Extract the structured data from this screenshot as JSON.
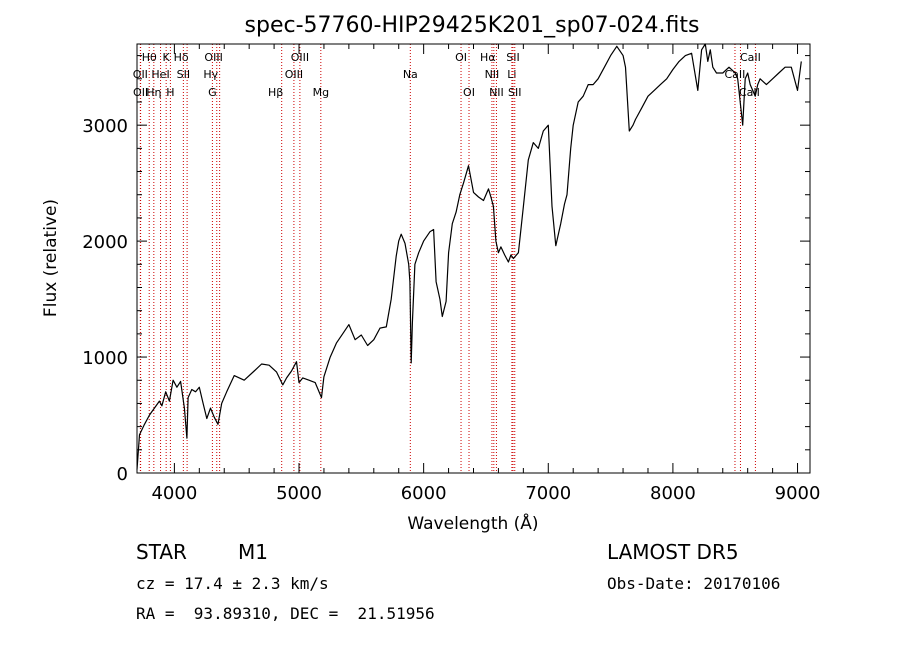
{
  "chart_data": {
    "type": "line",
    "title": "spec-57760-HIP29425K201_sp07-024.fits",
    "xlabel": "Wavelength (Å)",
    "ylabel": "Flux (relative)",
    "xlim": [
      3700,
      9100
    ],
    "ylim": [
      0,
      3700
    ],
    "xticks": [
      4000,
      5000,
      6000,
      7000,
      8000,
      9000
    ],
    "yticks": [
      0,
      1000,
      2000,
      3000
    ],
    "series": [
      {
        "x": [
          3700,
          3720,
          3760,
          3800,
          3840,
          3880,
          3900,
          3930,
          3960,
          3990,
          4020,
          4050,
          4080,
          4100,
          4110,
          4140,
          4170,
          4200,
          4230,
          4260,
          4290,
          4320,
          4350,
          4380,
          4420,
          4480,
          4560,
          4640,
          4700,
          4760,
          4820,
          4870,
          4900,
          4940,
          4980,
          5000,
          5030,
          5080,
          5130,
          5180,
          5200,
          5250,
          5300,
          5350,
          5400,
          5450,
          5500,
          5550,
          5600,
          5650,
          5700,
          5740,
          5780,
          5800,
          5820,
          5850,
          5880,
          5890,
          5900,
          5910,
          5930,
          5960,
          6000,
          6050,
          6080,
          6100,
          6130,
          6150,
          6180,
          6200,
          6230,
          6260,
          6290,
          6320,
          6360,
          6400,
          6440,
          6480,
          6520,
          6540,
          6560,
          6580,
          6600,
          6620,
          6650,
          6680,
          6700,
          6720,
          6760,
          6800,
          6840,
          6880,
          6920,
          6960,
          7000,
          7030,
          7060,
          7100,
          7130,
          7150,
          7180,
          7200,
          7240,
          7280,
          7320,
          7360,
          7400,
          7450,
          7500,
          7550,
          7600,
          7620,
          7650,
          7680,
          7700,
          7750,
          7800,
          7850,
          7900,
          7950,
          8000,
          8050,
          8100,
          8150,
          8200,
          8230,
          8260,
          8280,
          8300,
          8320,
          8350,
          8400,
          8450,
          8500,
          8520,
          8540,
          8560,
          8580,
          8600,
          8620,
          8640,
          8660,
          8680,
          8700,
          8750,
          8800,
          8850,
          8900,
          8950,
          9000,
          9030
        ],
        "values": [
          30,
          330,
          420,
          500,
          560,
          620,
          580,
          700,
          620,
          800,
          740,
          790,
          560,
          300,
          650,
          720,
          700,
          740,
          600,
          470,
          560,
          480,
          420,
          600,
          700,
          840,
          800,
          880,
          940,
          930,
          870,
          760,
          820,
          880,
          960,
          780,
          820,
          800,
          780,
          650,
          830,
          1000,
          1120,
          1200,
          1280,
          1150,
          1190,
          1100,
          1150,
          1250,
          1260,
          1500,
          1870,
          2000,
          2060,
          1980,
          1800,
          1650,
          950,
          1300,
          1800,
          1900,
          2000,
          2080,
          2100,
          1650,
          1500,
          1350,
          1480,
          1900,
          2150,
          2250,
          2400,
          2500,
          2650,
          2420,
          2380,
          2350,
          2450,
          2380,
          2300,
          2000,
          1900,
          1950,
          1880,
          1820,
          1880,
          1850,
          1900,
          2300,
          2700,
          2850,
          2800,
          2950,
          3000,
          2300,
          1960,
          2150,
          2320,
          2400,
          2800,
          3000,
          3200,
          3250,
          3350,
          3350,
          3400,
          3500,
          3600,
          3680,
          3600,
          3500,
          2950,
          3000,
          3050,
          3150,
          3250,
          3300,
          3350,
          3400,
          3480,
          3550,
          3600,
          3620,
          3300,
          3650,
          3700,
          3550,
          3650,
          3500,
          3450,
          3450,
          3500,
          3450,
          3400,
          3200,
          3000,
          3400,
          3450,
          3350,
          3300,
          3250,
          3350,
          3400,
          3350,
          3400,
          3450,
          3500,
          3500,
          3300,
          3550
        ]
      }
    ],
    "lines": [
      {
        "label": "Hθ",
        "x": 3798,
        "row": 0,
        "dx": 0
      },
      {
        "label": "K",
        "x": 3934,
        "row": 0,
        "dx": 0
      },
      {
        "label": "Hδ",
        "x": 4102,
        "row": 0,
        "dx": -6
      },
      {
        "label": "OIII",
        "x": 4363,
        "row": 0,
        "dx": -6
      },
      {
        "label": "OIII",
        "x": 5007,
        "row": 0,
        "dx": 0
      },
      {
        "label": "OI",
        "x": 6300,
        "row": 0,
        "dx": 0
      },
      {
        "label": "Hα",
        "x": 6563,
        "row": 0,
        "dx": -6
      },
      {
        "label": "SII",
        "x": 6717,
        "row": 0,
        "dx": 0
      },
      {
        "label": "CaII",
        "x": 8542,
        "row": 0,
        "dx": 10
      },
      {
        "label": "OII",
        "x": 3727,
        "row": 1,
        "dx": 0
      },
      {
        "label": "HeI",
        "x": 3889,
        "row": 1,
        "dx": 0
      },
      {
        "label": "SII",
        "x": 4072,
        "row": 1,
        "dx": 0
      },
      {
        "label": "Hγ",
        "x": 4340,
        "row": 1,
        "dx": -6
      },
      {
        "label": "OIII",
        "x": 4959,
        "row": 1,
        "dx": 0
      },
      {
        "label": "Na",
        "x": 5893,
        "row": 1,
        "dx": 0
      },
      {
        "label": "NII",
        "x": 6548,
        "row": 1,
        "dx": 0
      },
      {
        "label": "Li",
        "x": 6708,
        "row": 1,
        "dx": 0
      },
      {
        "label": "CaII",
        "x": 8498,
        "row": 1,
        "dx": 0
      },
      {
        "label": "OII",
        "x": 3729,
        "row": 2,
        "dx": 0
      },
      {
        "label": "Hη",
        "x": 3835,
        "row": 2,
        "dx": 0
      },
      {
        "label": "H",
        "x": 3968,
        "row": 2,
        "dx": 0
      },
      {
        "label": "G",
        "x": 4305,
        "row": 2,
        "dx": 0
      },
      {
        "label": "Hβ",
        "x": 4861,
        "row": 2,
        "dx": -6
      },
      {
        "label": "Mg",
        "x": 5175,
        "row": 2,
        "dx": 0
      },
      {
        "label": "OI",
        "x": 6364,
        "row": 2,
        "dx": 0
      },
      {
        "label": "NII",
        "x": 6584,
        "row": 2,
        "dx": 0
      },
      {
        "label": "SII",
        "x": 6731,
        "row": 2,
        "dx": 0
      },
      {
        "label": "CaII",
        "x": 8662,
        "row": 2,
        "dx": -6
      }
    ],
    "line_color": "#cc0000",
    "grid": false
  },
  "info": {
    "object_class": "STAR",
    "subclass": "M1",
    "survey": "LAMOST DR5",
    "redshift": "cz = 17.4 ± 2.3 km/s",
    "obs_date": "Obs-Date: 20170106",
    "coords": "RA =  93.89310, DEC =  21.51956"
  }
}
